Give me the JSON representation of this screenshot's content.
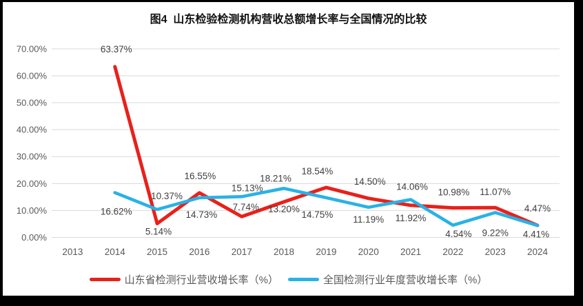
{
  "title": "图4  山东检验检测机构营收总额增长率与全国情况的比较",
  "colors": {
    "shandong_red": "#e8211b",
    "national_blue": "#29b2e5",
    "gridline": "#d9d9d9",
    "axis_text": "#595959",
    "data_label_text": "#3f3f3f",
    "frame_border": "#000000",
    "background": "#ffffff"
  },
  "legend": {
    "items": [
      {
        "label": "山东省检测行业营收增长率（%）",
        "color": "#e8211b"
      },
      {
        "label": "全国检测行业年度营收增长率（%）",
        "color": "#29b2e5"
      }
    ]
  },
  "chart_data": {
    "type": "line",
    "title": "图4  山东检验检测机构营收总额增长率与全国情况的比较",
    "categories": [
      "2013",
      "2014",
      "2015",
      "2016",
      "2017",
      "2018",
      "2019",
      "2020",
      "2021",
      "2022",
      "2023",
      "2024"
    ],
    "xlabel": "",
    "ylabel": "",
    "ylim": [
      0,
      70
    ],
    "ytick_step": 10,
    "ytick_labels": [
      "0.00%",
      "10.00%",
      "20.00%",
      "30.00%",
      "40.00%",
      "50.00%",
      "60.00%",
      "70.00%"
    ],
    "grid": true,
    "legend_position": "bottom",
    "series": [
      {
        "name": "山东省检测行业营收增长率（%）",
        "color": "#e8211b",
        "line_width": 5,
        "points": [
          {
            "x": "2014",
            "y": 63.37,
            "label": "63.37%",
            "dx": 2,
            "dy": -21
          },
          {
            "x": "2015",
            "y": 5.14,
            "label": "5.14%",
            "dx": 2,
            "dy": 16
          },
          {
            "x": "2016",
            "y": 16.55,
            "label": "16.55%",
            "dx": 1,
            "dy": -20
          },
          {
            "x": "2017",
            "y": 7.74,
            "label": "7.74%",
            "dx": 6,
            "dy": -9
          },
          {
            "x": "2018",
            "y": 13.2,
            "label": "13.20%",
            "dx": 0,
            "dy": 15
          },
          {
            "x": "2019",
            "y": 18.54,
            "label": "18.54%",
            "dx": -13,
            "dy": -19
          },
          {
            "x": "2020",
            "y": 14.5,
            "label": "14.50%",
            "dx": 2,
            "dy": -20
          },
          {
            "x": "2021",
            "y": 11.92,
            "label": "11.92%",
            "dx": 0,
            "dy": 23
          },
          {
            "x": "2022",
            "y": 10.98,
            "label": "10.98%",
            "dx": 1,
            "dy": -18
          },
          {
            "x": "2023",
            "y": 11.07,
            "label": "11.07%",
            "dx": 0,
            "dy": -18
          },
          {
            "x": "2024",
            "y": 4.47,
            "label": "4.47%",
            "dx": 0,
            "dy": -20
          }
        ]
      },
      {
        "name": "全国检测行业年度营收增长率（%）",
        "color": "#29b2e5",
        "line_width": 4.6,
        "points": [
          {
            "x": "2014",
            "y": 16.62,
            "label": "16.62%",
            "dx": 2,
            "dy": 32
          },
          {
            "x": "2015",
            "y": 10.37,
            "label": "10.37%",
            "dx": 14,
            "dy": -15
          },
          {
            "x": "2016",
            "y": 14.73,
            "label": "14.73%",
            "dx": 3,
            "dy": 29
          },
          {
            "x": "2017",
            "y": 15.13,
            "label": "15.13%",
            "dx": 8,
            "dy": -8
          },
          {
            "x": "2018",
            "y": 18.21,
            "label": "18.21%",
            "dx": -12,
            "dy": -10
          },
          {
            "x": "2019",
            "y": 14.75,
            "label": "14.75%",
            "dx": -13,
            "dy": 29
          },
          {
            "x": "2020",
            "y": 11.19,
            "label": "11.19%",
            "dx": 0,
            "dy": 22
          },
          {
            "x": "2021",
            "y": 14.06,
            "label": "14.06%",
            "dx": 2,
            "dy": -14
          },
          {
            "x": "2022",
            "y": 4.54,
            "label": "4.54%",
            "dx": 8,
            "dy": 17
          },
          {
            "x": "2023",
            "y": 9.22,
            "label": "9.22%",
            "dx": 0,
            "dy": 34
          },
          {
            "x": "2024",
            "y": 4.41,
            "label": "4.41%",
            "dx": -2,
            "dy": 17
          }
        ]
      }
    ]
  }
}
